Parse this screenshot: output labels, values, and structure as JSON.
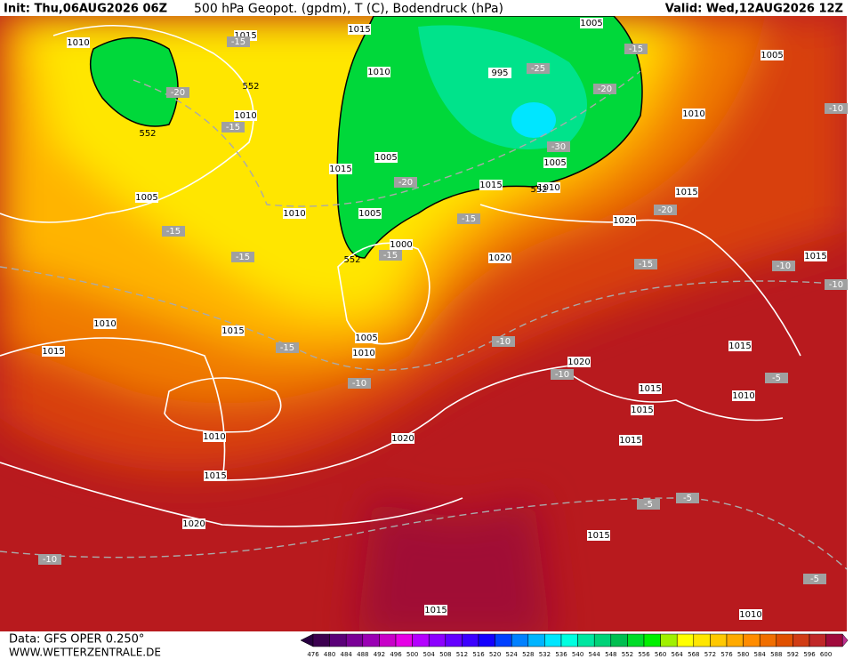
{
  "header": {
    "init": "Init: Thu,06AUG2026 06Z",
    "title": "500 hPa Geopot. (gpdm), T (C), Bodendruck (hPa)",
    "valid": "Valid: Wed,12AUG2026 12Z"
  },
  "footer": {
    "data_source": "Data: GFS OPER 0.250°",
    "website": "WWW.WETTERZENTRALE.DE"
  },
  "colorbar": {
    "labels": [
      476,
      480,
      484,
      488,
      492,
      496,
      500,
      504,
      508,
      512,
      516,
      520,
      524,
      528,
      532,
      536,
      540,
      544,
      548,
      552,
      556,
      560,
      564,
      568,
      572,
      576,
      580,
      584,
      588,
      592,
      596,
      600
    ]
  },
  "map": {
    "isobar_labels": [
      "1010",
      "1015",
      "1015",
      "1005",
      "1010",
      "995",
      "1005",
      "1010",
      "1010",
      "1005",
      "1015",
      "1005",
      "1015",
      "1010",
      "1005",
      "1010",
      "1005",
      "1015",
      "1020",
      "1000",
      "1020",
      "1015",
      "1010",
      "1015",
      "1005",
      "1010",
      "1015",
      "1015",
      "1020",
      "1015",
      "1010",
      "1015",
      "1010",
      "1020",
      "1015",
      "1015",
      "1020",
      "1015",
      "1015",
      "1010"
    ],
    "temperature_labels": [
      "-15",
      "-20",
      "-15",
      "-25",
      "-20",
      "-15",
      "-30",
      "-20",
      "-15",
      "-20",
      "-15",
      "-15",
      "-15",
      "-15",
      "-10",
      "-10",
      "-10",
      "-15",
      "-10",
      "-10",
      "-10",
      "-5",
      "-5",
      "-5",
      "-10",
      "-5"
    ],
    "geopotential_labels": [
      "552",
      "552",
      "552",
      "552"
    ]
  }
}
